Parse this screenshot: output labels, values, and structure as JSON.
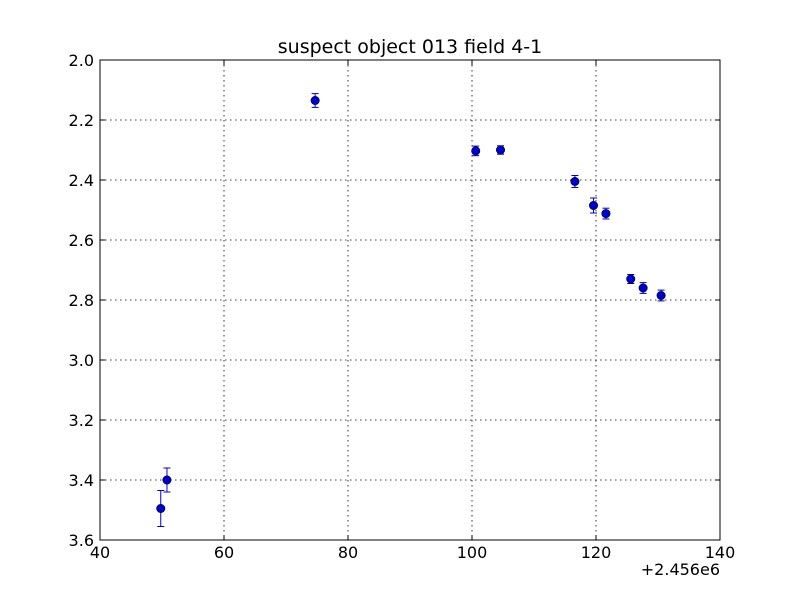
{
  "chart_data": {
    "type": "scatter",
    "title": "suspect object 013 field 4-1",
    "xlabel": "",
    "ylabel": "",
    "x_offset_label": "+2.456e6",
    "xlim": [
      40,
      140
    ],
    "ylim": [
      3.6,
      2.0
    ],
    "y_inverted": true,
    "x_ticks": [
      40,
      60,
      80,
      100,
      120,
      140
    ],
    "x_tick_labels": [
      "40",
      "60",
      "80",
      "100",
      "120",
      "140"
    ],
    "y_ticks": [
      2.0,
      2.2,
      2.4,
      2.6,
      2.8,
      3.0,
      3.2,
      3.4,
      3.6
    ],
    "y_tick_labels": [
      "2.0",
      "2.2",
      "2.4",
      "2.6",
      "2.8",
      "3.0",
      "3.2",
      "3.4",
      "3.6"
    ],
    "grid": true,
    "marker_color": "#0000cc",
    "series": [
      {
        "points": [
          {
            "x": 49.8,
            "y": 3.495,
            "err": 0.06
          },
          {
            "x": 50.8,
            "y": 3.4,
            "err": 0.04
          },
          {
            "x": 74.7,
            "y": 2.135,
            "err": 0.023
          },
          {
            "x": 100.6,
            "y": 2.303,
            "err": 0.016
          },
          {
            "x": 104.6,
            "y": 2.3,
            "err": 0.014
          },
          {
            "x": 116.6,
            "y": 2.405,
            "err": 0.02
          },
          {
            "x": 119.6,
            "y": 2.485,
            "err": 0.025
          },
          {
            "x": 121.6,
            "y": 2.512,
            "err": 0.018
          },
          {
            "x": 125.6,
            "y": 2.73,
            "err": 0.015
          },
          {
            "x": 127.6,
            "y": 2.76,
            "err": 0.018
          },
          {
            "x": 130.5,
            "y": 2.785,
            "err": 0.018
          }
        ]
      }
    ]
  }
}
